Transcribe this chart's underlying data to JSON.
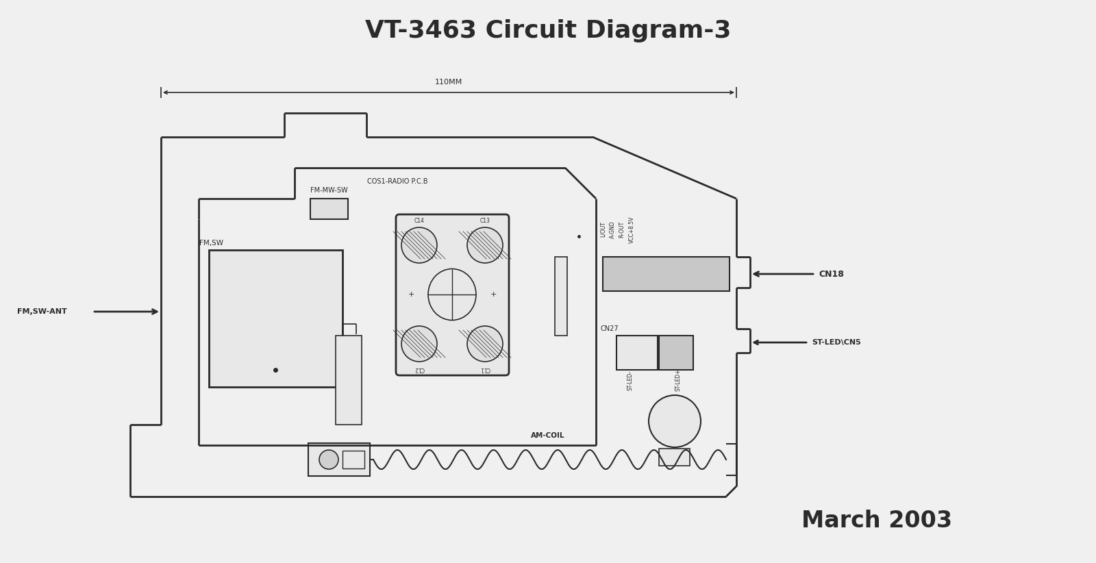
{
  "title": "VT-3463 Circuit Diagram-3",
  "subtitle": "March 2003",
  "bg_color": "#f0f0f0",
  "line_color": "#2a2a2a",
  "title_fontsize": 26,
  "subtitle_fontsize": 24,
  "dim_label": "110MM",
  "labels": {
    "fm_sw_ant": "FM,SW-ANT",
    "fm_sw": "FM,SW",
    "cos1_radio": "COS1-RADIO P.C.B",
    "fm_mw_sw": "FM-MW-SW",
    "cn18": "CN18",
    "st_led_cn5": "ST-LED\\CN5",
    "cn27": "CN27",
    "am_coil": "AM-COIL",
    "l_out": "L/OUT",
    "a_gnd": "A-GND",
    "r_out": "R-OUT",
    "vcc": "VCC+8.5V",
    "st_led_minus": "ST-LED-",
    "st_led_plus": "ST-LED+",
    "c14": "C14",
    "c13": "C13",
    "c12": "C12",
    "c11": "C11"
  }
}
